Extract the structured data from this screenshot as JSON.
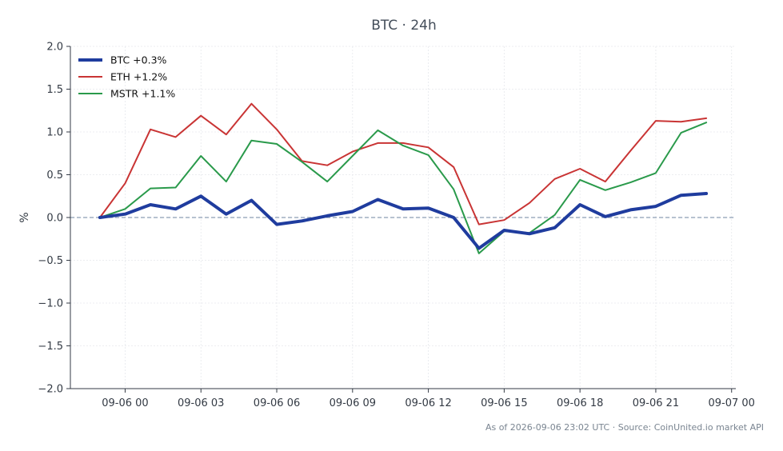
{
  "chart_data": {
    "type": "line",
    "title": "BTC · 24h",
    "xlabel": "",
    "ylabel": "%",
    "ylim": [
      -2.0,
      2.0
    ],
    "yticks": [
      "2.0",
      "1.5",
      "1.0",
      "0.5",
      "0.0",
      "−0.5",
      "−1.0",
      "−1.5",
      "−2.0"
    ],
    "ytick_values": [
      2.0,
      1.5,
      1.0,
      0.5,
      0.0,
      -0.5,
      -1.0,
      -1.5,
      -2.0
    ],
    "xlim": [
      "2026-09-05 21:50",
      "2026-09-07 00:10"
    ],
    "xticks": [
      "09-06 00",
      "09-06 03",
      "09-06 06",
      "09-06 09",
      "09-06 12",
      "09-06 15",
      "09-06 18",
      "09-06 21",
      "09-07 00"
    ],
    "xtick_values": [
      "2026-09-06 00:00",
      "2026-09-06 03:00",
      "2026-09-06 06:00",
      "2026-09-06 09:00",
      "2026-09-06 12:00",
      "2026-09-06 15:00",
      "2026-09-06 18:00",
      "2026-09-06 21:00",
      "2026-09-07 00:00"
    ],
    "grid": true,
    "zero_line": true,
    "legend_position": "top-left",
    "x": [
      "2026-09-05 23:00",
      "2026-09-06 00:00",
      "2026-09-06 01:00",
      "2026-09-06 02:00",
      "2026-09-06 03:00",
      "2026-09-06 04:00",
      "2026-09-06 05:00",
      "2026-09-06 06:00",
      "2026-09-06 07:00",
      "2026-09-06 08:00",
      "2026-09-06 09:00",
      "2026-09-06 10:00",
      "2026-09-06 11:00",
      "2026-09-06 12:00",
      "2026-09-06 13:00",
      "2026-09-06 14:00",
      "2026-09-06 15:00",
      "2026-09-06 16:00",
      "2026-09-06 17:00",
      "2026-09-06 18:00",
      "2026-09-06 19:00",
      "2026-09-06 20:00",
      "2026-09-06 21:00",
      "2026-09-06 22:00",
      "2026-09-06 23:00"
    ],
    "series": [
      {
        "name": "BTC +0.3%",
        "color": "#1f3c9e",
        "values": [
          0.0,
          0.04,
          0.15,
          0.1,
          0.25,
          0.04,
          0.2,
          -0.08,
          -0.04,
          0.02,
          0.07,
          0.21,
          0.1,
          0.11,
          0.0,
          -0.36,
          -0.15,
          -0.19,
          -0.12,
          0.15,
          0.01,
          0.09,
          0.13,
          0.26,
          0.28
        ]
      },
      {
        "name": "ETH +1.2%",
        "color": "#c93434",
        "values": [
          0.0,
          0.4,
          1.03,
          0.94,
          1.19,
          0.97,
          1.33,
          1.03,
          0.66,
          0.61,
          0.77,
          0.87,
          0.87,
          0.82,
          0.59,
          -0.08,
          -0.03,
          0.17,
          0.45,
          0.57,
          0.42,
          0.78,
          1.13,
          1.12,
          1.16
        ]
      },
      {
        "name": "MSTR +1.1%",
        "color": "#2a9a4b",
        "values": [
          0.0,
          0.1,
          0.34,
          0.35,
          0.72,
          0.42,
          0.9,
          0.86,
          0.65,
          0.42,
          0.72,
          1.02,
          0.84,
          0.73,
          0.33,
          -0.42,
          -0.16,
          -0.18,
          0.03,
          0.44,
          0.32,
          0.41,
          0.52,
          0.99,
          1.11
        ]
      }
    ],
    "footer": "As of 2026-09-06 23:02 UTC · Source: CoinUnited.io market API"
  }
}
